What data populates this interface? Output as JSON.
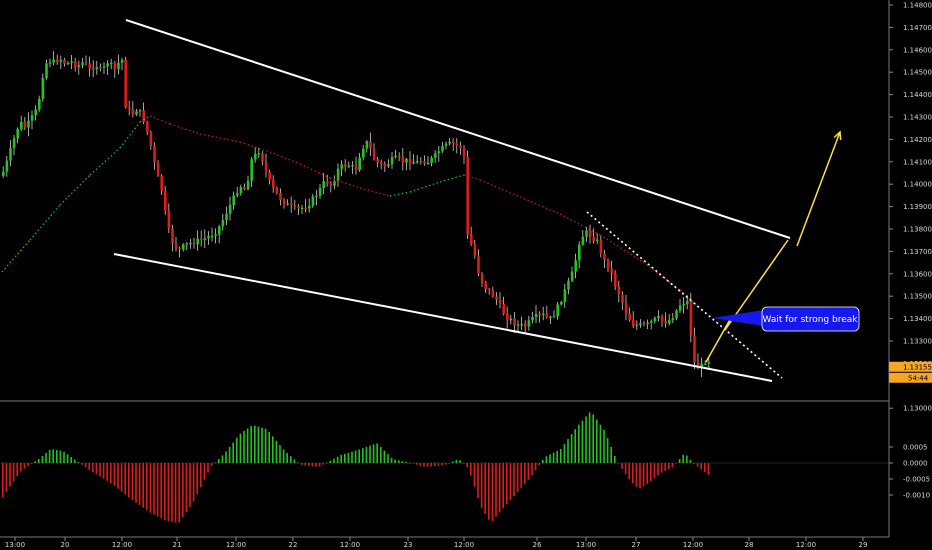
{
  "chart_data": {
    "type": "candlestick",
    "price_axis": {
      "ticks": [
        "1.14800",
        "1.14700",
        "1.14600",
        "1.14500",
        "1.14400",
        "1.14300",
        "1.14200",
        "1.14100",
        "1.14000",
        "1.13900",
        "1.13800",
        "1.13700",
        "1.13600",
        "1.13500",
        "1.13400",
        "1.13300",
        "1.13200",
        "1.13000"
      ],
      "current_price": "1.13155",
      "countdown": "54:44"
    },
    "oscillator_axis": {
      "ticks": [
        "0.0005",
        "0.0000",
        "-0.0005",
        "-0.0010"
      ]
    },
    "time_axis": {
      "ticks": [
        "13:00",
        "20",
        "12:00",
        "21",
        "12:00",
        "22",
        "12:00",
        "23",
        "12:00",
        "26",
        "13:00",
        "27",
        "12:00",
        "28",
        "12:00",
        "29"
      ]
    },
    "annotation": "Wait for strong break",
    "colors": {
      "bull": "#22c422",
      "bear": "#e01b1b",
      "channel": "#ffffff",
      "arrows": "#ffe23a",
      "callout": "#1717f0",
      "ma_up": "#22c422",
      "ma_down": "#d01e1e",
      "price_tag": "#f5a623"
    }
  }
}
